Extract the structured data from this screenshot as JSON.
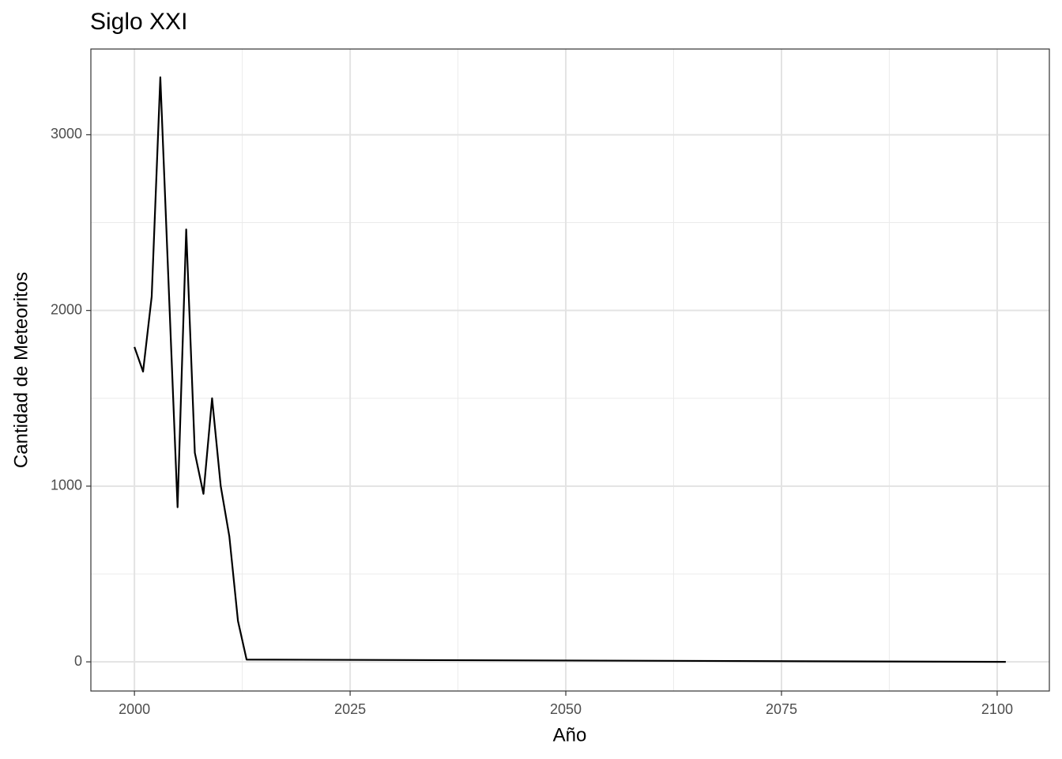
{
  "chart_data": {
    "type": "line",
    "title": "Siglo XXI",
    "xlabel": "Año",
    "ylabel": "Cantidad de Meteoritos",
    "x": [
      2000,
      2001,
      2002,
      2003,
      2004,
      2005,
      2006,
      2007,
      2008,
      2009,
      2010,
      2011,
      2012,
      2013,
      2101
    ],
    "series": [
      {
        "color": "#000000",
        "values": [
          1792,
          1652,
          2079,
          3327,
          2100,
          880,
          2461,
          1190,
          956,
          1500,
          1001,
          714,
          233,
          13,
          0
        ]
      }
    ],
    "xlim": [
      1994.95,
      2106.05
    ],
    "ylim": [
      -166,
      3488
    ],
    "xticks": [
      2000,
      2025,
      2050,
      2075,
      2100
    ],
    "yticks": [
      0,
      1000,
      2000,
      3000
    ],
    "x_minor_grid": [
      2012.5,
      2037.5,
      2062.5,
      2087.5
    ],
    "y_minor_grid": [
      500,
      1500,
      2500
    ],
    "grid": true
  }
}
